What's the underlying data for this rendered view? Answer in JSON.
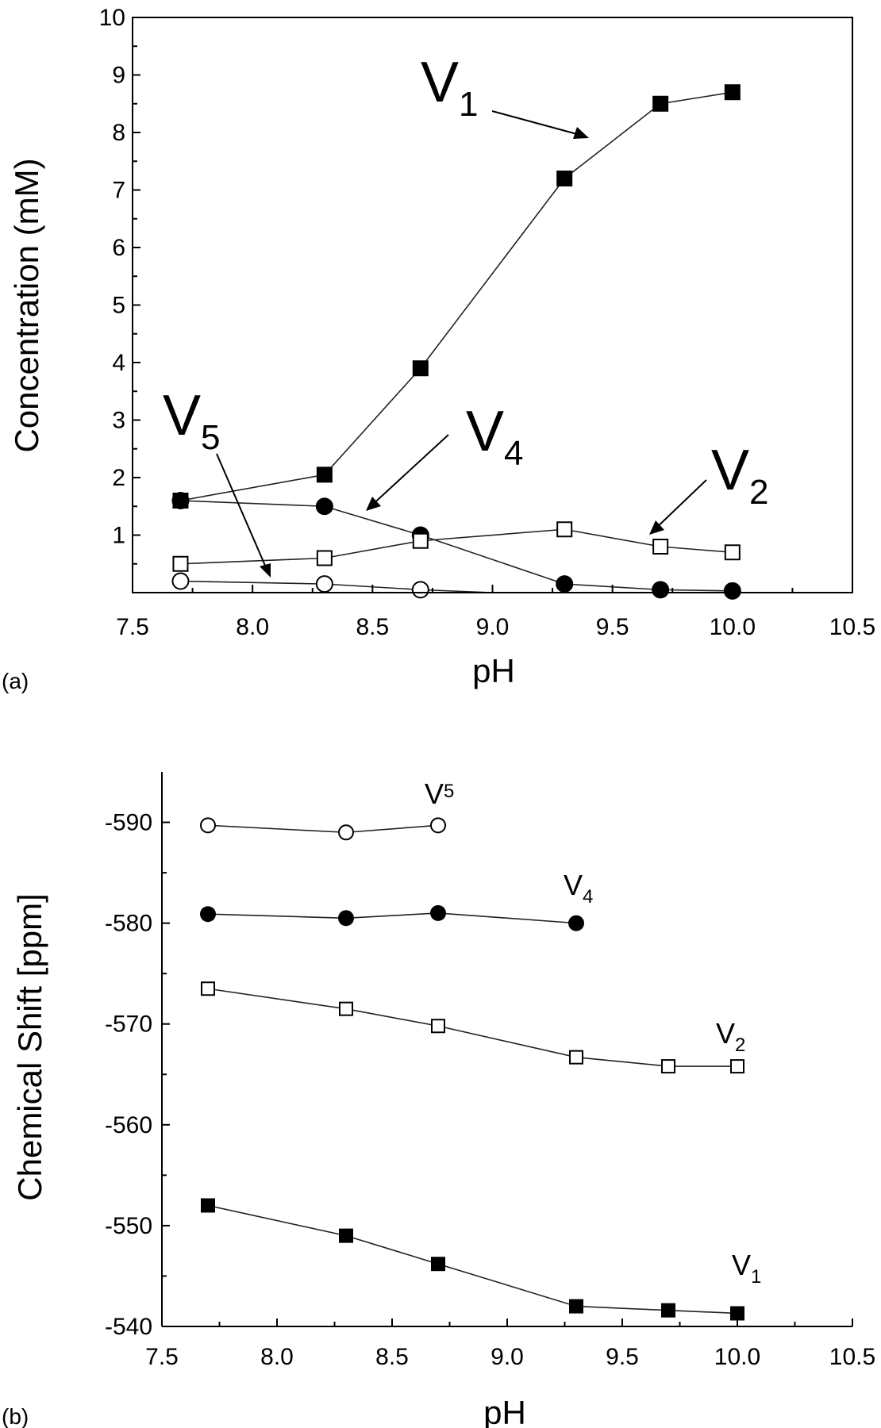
{
  "chart_data": [
    {
      "panel": "(a)",
      "type": "line",
      "xlabel": "pH",
      "ylabel": "Concentration (mM)",
      "xlim": [
        7.5,
        10.5
      ],
      "ylim": [
        0,
        10
      ],
      "xticks": [
        "7.5",
        "8.0",
        "8.5",
        "9.0",
        "9.5",
        "10.0",
        "10.5"
      ],
      "yticks": [
        "1",
        "2",
        "3",
        "4",
        "5",
        "6",
        "7",
        "8",
        "9",
        "10"
      ],
      "series": [
        {
          "name": "V1",
          "marker": "filled-square",
          "x": [
            7.7,
            8.3,
            8.7,
            9.3,
            9.7,
            10.0
          ],
          "y": [
            1.6,
            2.05,
            3.9,
            7.2,
            8.5,
            8.7
          ]
        },
        {
          "name": "V4",
          "marker": "filled-circle",
          "x": [
            7.7,
            8.3,
            8.7,
            9.3,
            9.7,
            10.0
          ],
          "y": [
            1.6,
            1.5,
            1.0,
            0.15,
            0.05,
            0.03
          ]
        },
        {
          "name": "V2",
          "marker": "open-square",
          "x": [
            7.7,
            8.3,
            8.7,
            9.3,
            9.7,
            10.0
          ],
          "y": [
            0.5,
            0.6,
            0.9,
            1.1,
            0.8,
            0.7
          ]
        },
        {
          "name": "V5",
          "marker": "open-circle",
          "x": [
            7.7,
            8.3,
            8.7,
            9.0
          ],
          "y": [
            0.2,
            0.15,
            0.05,
            0.0
          ]
        }
      ],
      "annotations": [
        {
          "text": "V",
          "sub": "1"
        },
        {
          "text": "V",
          "sub": "4"
        },
        {
          "text": "V",
          "sub": "2"
        },
        {
          "text": "V",
          "sub": "5"
        }
      ]
    },
    {
      "panel": "(b)",
      "type": "line",
      "xlabel": "pH",
      "ylabel": "Chemical Shift [ppm]",
      "xlim": [
        7.5,
        10.5
      ],
      "ylim": [
        -540,
        -595
      ],
      "xticks": [
        "7.5",
        "8.0",
        "8.5",
        "9.0",
        "9.5",
        "10.0",
        "10.5"
      ],
      "yticks": [
        "-540",
        "-550",
        "-560",
        "-570",
        "-580",
        "-590"
      ],
      "series": [
        {
          "name": "V5",
          "marker": "open-circle",
          "x": [
            7.7,
            8.3,
            8.7
          ],
          "y": [
            -589.7,
            -589.0,
            -589.7
          ]
        },
        {
          "name": "V4",
          "marker": "filled-circle",
          "x": [
            7.7,
            8.3,
            8.7,
            9.3
          ],
          "y": [
            -580.9,
            -580.5,
            -581.0,
            -580.0
          ]
        },
        {
          "name": "V2",
          "marker": "open-square",
          "x": [
            7.7,
            8.3,
            8.7,
            9.3,
            9.7,
            10.0
          ],
          "y": [
            -573.5,
            -571.5,
            -569.8,
            -566.7,
            -565.8,
            -565.8
          ]
        },
        {
          "name": "V1",
          "marker": "filled-square",
          "x": [
            7.7,
            8.3,
            8.7,
            9.3,
            9.7,
            10.0
          ],
          "y": [
            -552.0,
            -549.0,
            -546.2,
            -542.0,
            -541.6,
            -541.3
          ]
        }
      ],
      "annotations": [
        {
          "text": "V",
          "sub": "5"
        },
        {
          "text": "V",
          "sub": "4"
        },
        {
          "text": "V",
          "sub": "2"
        },
        {
          "text": "V",
          "sub": "1"
        }
      ]
    }
  ]
}
